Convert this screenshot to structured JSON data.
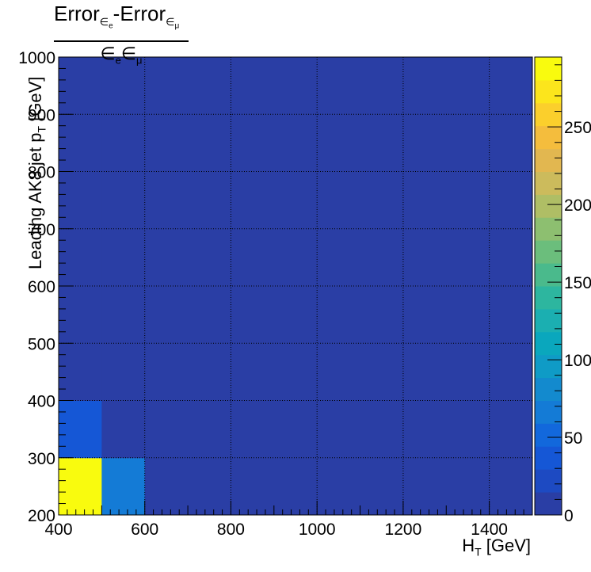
{
  "chart_data": {
    "type": "heatmap",
    "title": {
      "numerator_a": "Error",
      "numerator_a_sub": "∈",
      "numerator_a_subsub": "e",
      "separator": "-",
      "numerator_b": "Error",
      "numerator_b_sub": "∈",
      "numerator_b_subsub": "μ",
      "denominator_a": "∈",
      "denominator_a_sub": "e",
      "denominator_b": "∈",
      "denominator_b_sub": "μ"
    },
    "xlabel": {
      "main": "H",
      "sub": "T",
      "rest": " [GeV]"
    },
    "ylabel": {
      "main": "Leading AK8 jet p",
      "sub": "T",
      "rest": " [GeV]"
    },
    "xlim": [
      400,
      1500
    ],
    "ylim": [
      200,
      1000
    ],
    "x_edges": [
      400,
      500,
      600,
      700,
      800,
      900,
      1000,
      1100,
      1200,
      1300,
      1400,
      1500
    ],
    "y_edges": [
      200,
      300,
      400,
      500,
      600,
      700,
      800,
      900,
      1000
    ],
    "x_ticks": [
      400,
      600,
      800,
      1000,
      1200,
      1400
    ],
    "y_ticks": [
      200,
      300,
      400,
      500,
      600,
      700,
      800,
      900,
      1000
    ],
    "grid": true,
    "z_range": [
      0,
      295
    ],
    "z_ticks": [
      0,
      50,
      100,
      150,
      200,
      250
    ],
    "z_tick_labels": [
      "0",
      "50",
      "100",
      "150",
      "200",
      "250"
    ],
    "cells": [
      {
        "x": [
          400,
          500
        ],
        "y": [
          200,
          300
        ],
        "value": 295
      },
      {
        "x": [
          500,
          600
        ],
        "y": [
          200,
          300
        ],
        "value": 60
      },
      {
        "x": [
          400,
          500
        ],
        "y": [
          300,
          400
        ],
        "value": 35
      }
    ],
    "default_value": 8,
    "palette": [
      "#2a3ea5",
      "#1d4ac2",
      "#1557d6",
      "#1268dc",
      "#147bd6",
      "#138ace",
      "#0f9bc6",
      "#0aa7bd",
      "#1bafb1",
      "#2db69f",
      "#4aba8c",
      "#6bbe7c",
      "#8dbf70",
      "#afbe65",
      "#ccbb5c",
      "#e2b750",
      "#f4bd3d",
      "#fbcf2c",
      "#fce51c",
      "#f9fb0e"
    ]
  }
}
